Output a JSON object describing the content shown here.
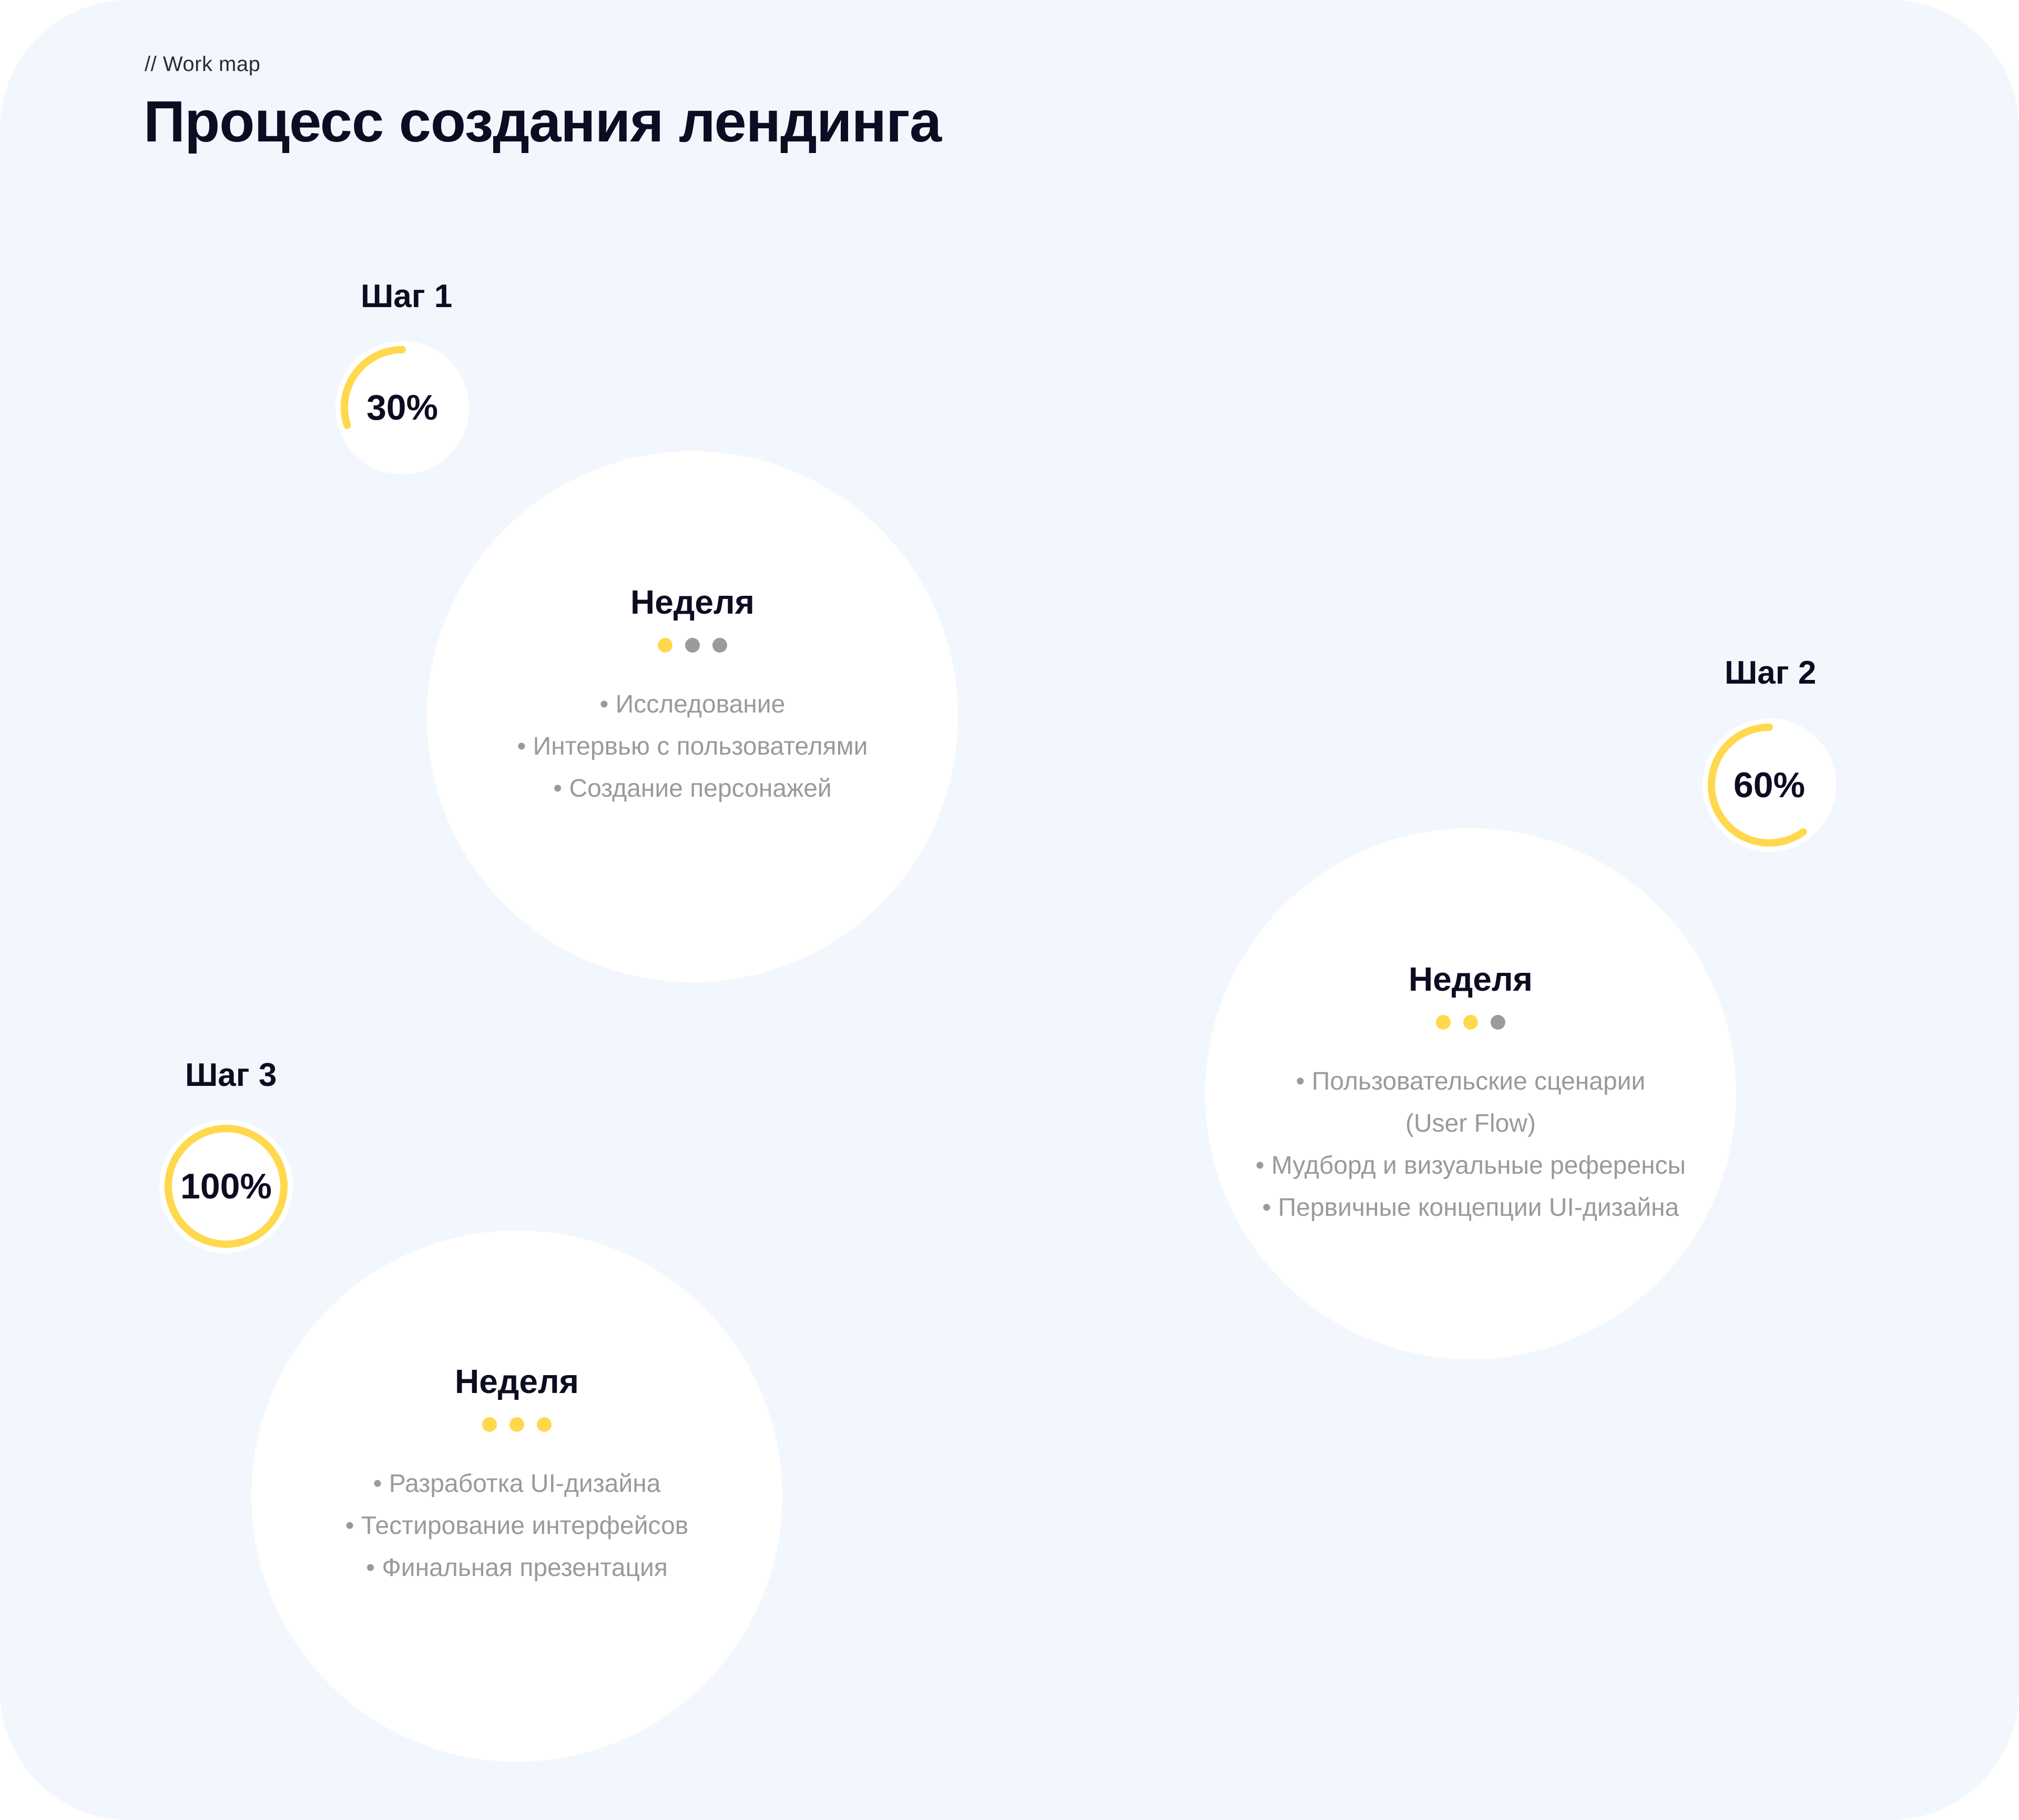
{
  "header": {
    "eyebrow": "// Work map",
    "title": "Процесс создания лендинга"
  },
  "colors": {
    "accent": "#ffd84d",
    "inactive_dot": "#9b9b9b",
    "track": "#ffffff",
    "panel_bg": "#f2f7fd"
  },
  "steps": [
    {
      "label": "Шаг 1",
      "percent_text": "30%",
      "progress": 0.3,
      "week_title": "Неделя",
      "filled_dots": 1,
      "total_dots": 3,
      "items": [
        "• Исследование",
        "• Интервью с пользователями",
        "• Создание персонажей"
      ]
    },
    {
      "label": "Шаг 2",
      "percent_text": "60%",
      "progress": 0.6,
      "week_title": "Неделя",
      "filled_dots": 2,
      "total_dots": 3,
      "items": [
        "• Пользовательские сценарии",
        "(User Flow)",
        "• Мудборд и визуальные референсы",
        "• Первичные концепции UI-дизайна"
      ]
    },
    {
      "label": "Шаг 3",
      "percent_text": "100%",
      "progress": 1.0,
      "week_title": "Неделя",
      "filled_dots": 3,
      "total_dots": 3,
      "items": [
        "• Разработка UI-дизайна",
        "• Тестирование интерфейсов",
        "• Финальная презентация"
      ]
    }
  ]
}
